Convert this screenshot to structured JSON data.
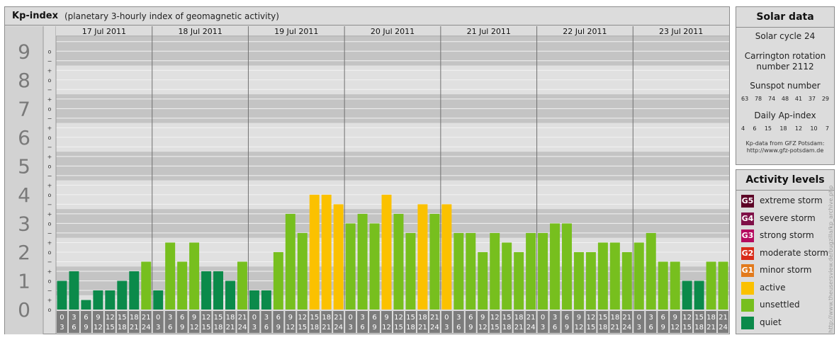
{
  "header": {
    "title": "Kp-index",
    "subtitle": "(planetary 3-hourly index of geomagnetic activity)"
  },
  "chart_data": {
    "type": "bar",
    "title": "Kp-index",
    "subtitle": "(planetary 3-hourly index of geomagnetic activity)",
    "ylim": [
      0,
      9
    ],
    "y_major_ticks": [
      "0",
      "1",
      "2",
      "3",
      "4",
      "5",
      "6",
      "7",
      "8",
      "9"
    ],
    "y_minor_ticks": [
      "o",
      "+",
      "−",
      "o",
      "+",
      "−",
      "o",
      "+",
      "−",
      "o",
      "+",
      "−",
      "o",
      "+",
      "−",
      "o",
      "+",
      "−",
      "o",
      "+",
      "−",
      "o",
      "+",
      "−",
      "o",
      "+",
      "−",
      "o"
    ],
    "days": [
      "17 Jul 2011",
      "18 Jul 2011",
      "19 Jul 2011",
      "20 Jul 2011",
      "21 Jul 2011",
      "22 Jul 2011",
      "23 Jul 2011"
    ],
    "interval_labels": [
      [
        "0",
        "3"
      ],
      [
        "3",
        "6"
      ],
      [
        "6",
        "9"
      ],
      [
        "9",
        "12"
      ],
      [
        "12",
        "15"
      ],
      [
        "15",
        "18"
      ],
      [
        "18",
        "21"
      ],
      [
        "21",
        "24"
      ]
    ],
    "values": [
      1.0,
      1.333,
      0.333,
      0.667,
      0.667,
      1.0,
      1.333,
      1.667,
      0.667,
      2.333,
      1.667,
      2.333,
      1.333,
      1.333,
      1.0,
      1.667,
      0.667,
      0.667,
      2.0,
      3.333,
      2.667,
      4.0,
      4.0,
      3.667,
      3.0,
      3.333,
      3.0,
      4.0,
      3.333,
      2.667,
      3.667,
      3.333,
      3.667,
      2.667,
      2.667,
      2.0,
      2.667,
      2.333,
      2.0,
      2.667,
      2.667,
      3.0,
      3.0,
      2.0,
      2.0,
      2.333,
      2.333,
      2.0,
      2.333,
      2.667,
      1.667,
      1.667,
      1.0,
      1.0,
      1.667,
      1.667
    ],
    "levels": [
      "quiet",
      "quiet",
      "quiet",
      "quiet",
      "quiet",
      "quiet",
      "quiet",
      "unsettled",
      "quiet",
      "unsettled",
      "unsettled",
      "unsettled",
      "quiet",
      "quiet",
      "quiet",
      "unsettled",
      "quiet",
      "quiet",
      "unsettled",
      "unsettled",
      "unsettled",
      "active",
      "active",
      "active",
      "unsettled",
      "unsettled",
      "unsettled",
      "active",
      "unsettled",
      "unsettled",
      "active",
      "unsettled",
      "active",
      "unsettled",
      "unsettled",
      "unsettled",
      "unsettled",
      "unsettled",
      "unsettled",
      "unsettled",
      "unsettled",
      "unsettled",
      "unsettled",
      "unsettled",
      "unsettled",
      "unsettled",
      "unsettled",
      "unsettled",
      "unsettled",
      "unsettled",
      "unsettled",
      "unsettled",
      "quiet",
      "quiet",
      "unsettled",
      "unsettled"
    ],
    "colors": {
      "quiet": "#0b8a4a",
      "unsettled": "#77bf1e",
      "active": "#fbc100",
      "band_dark": "#c4c4c4",
      "band_light": "#e0e0e0",
      "label_box": "#7c7c7c"
    }
  },
  "solar": {
    "title": "Solar data",
    "cycle": "Solar cycle 24",
    "carrington_line1": "Carrington rotation",
    "carrington_line2": "number 2112",
    "sunspot_title": "Sunspot number",
    "sunspot_values": [
      "63",
      "78",
      "74",
      "48",
      "41",
      "37",
      "29"
    ],
    "ap_title": "Daily Ap-index",
    "ap_values": [
      "4",
      "6",
      "15",
      "18",
      "12",
      "10",
      "7"
    ],
    "credit_line1": "Kp-data from GFZ Potsdam:",
    "credit_line2": "http://www.gfz-potsdam.de"
  },
  "activity": {
    "title": "Activity levels",
    "items": [
      {
        "code": "G5",
        "label": "extreme storm",
        "color": "#5c0126"
      },
      {
        "code": "G4",
        "label": "severe storm",
        "color": "#7f1047"
      },
      {
        "code": "G3",
        "label": "strong storm",
        "color": "#b50a5f"
      },
      {
        "code": "G2",
        "label": "moderate storm",
        "color": "#d92c19"
      },
      {
        "code": "G1",
        "label": "minor storm",
        "color": "#e27a1c"
      },
      {
        "code": "",
        "label": "active",
        "color": "#fbc100"
      },
      {
        "code": "",
        "label": "unsettled",
        "color": "#77bf1e"
      },
      {
        "code": "",
        "label": "quiet",
        "color": "#0b8a4a"
      }
    ]
  },
  "watermark": "http://www.theusersview.de/bugzilla/kp_archive.php"
}
